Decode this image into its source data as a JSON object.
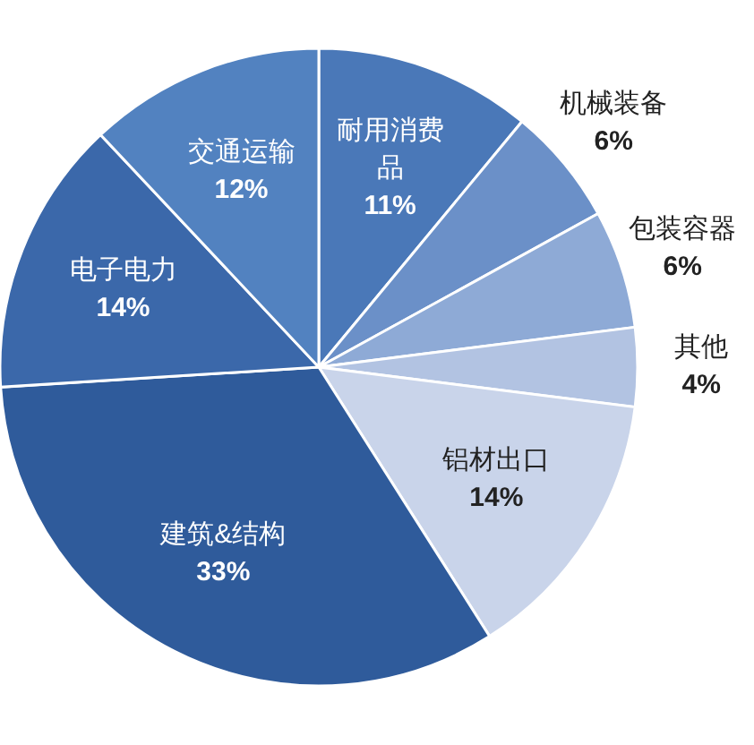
{
  "chart_data": {
    "type": "pie",
    "categories": [
      "耐用消费品",
      "机械装备",
      "包装容器",
      "其他",
      "铝材出口",
      "建筑&结构",
      "电子电力",
      "交通运输"
    ],
    "values": [
      11,
      6,
      6,
      4,
      14,
      33,
      14,
      12
    ],
    "value_labels": [
      "11%",
      "6%",
      "6%",
      "4%",
      "14%",
      "33%",
      "14%",
      "12%"
    ],
    "colors": [
      "#4a78b8",
      "#6b90c8",
      "#8eaad6",
      "#b2c3e2",
      "#c9d4ea",
      "#2f5b9b",
      "#3b68aa",
      "#5282c0"
    ]
  }
}
